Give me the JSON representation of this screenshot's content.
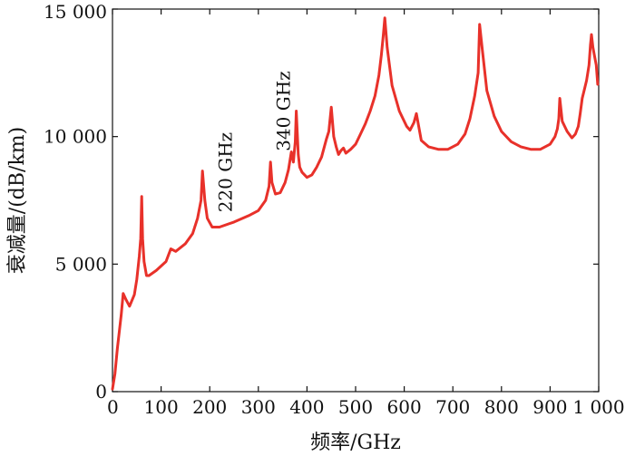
{
  "chart_data": {
    "type": "line",
    "title": "",
    "xlabel": "频率/GHz",
    "ylabel": "衰减量/(dB/km)",
    "xlim": [
      0,
      1000
    ],
    "ylim": [
      0,
      15000
    ],
    "grid": false,
    "x_ticks": [
      0,
      100,
      200,
      300,
      400,
      500,
      600,
      700,
      800,
      900,
      1000
    ],
    "x_tick_labels": [
      "0",
      "100",
      "200",
      "300",
      "400",
      "500",
      "600",
      "700",
      "800",
      "900",
      "1 000"
    ],
    "y_ticks": [
      0,
      5000,
      10000,
      15000
    ],
    "y_tick_labels": [
      "0",
      "5 000",
      "10 000",
      "15 000"
    ],
    "series": [
      {
        "color": "#e8312a",
        "x": [
          0,
          5,
          10,
          18,
          22,
          28,
          35,
          45,
          50,
          55,
          58,
          60,
          62,
          65,
          70,
          75,
          90,
          110,
          120,
          130,
          150,
          165,
          175,
          182,
          185,
          190,
          195,
          205,
          220,
          250,
          280,
          300,
          315,
          322,
          325,
          328,
          335,
          345,
          355,
          362,
          368,
          372,
          376,
          378,
          382,
          385,
          390,
          400,
          410,
          420,
          430,
          440,
          445,
          450,
          455,
          460,
          465,
          470,
          475,
          480,
          490,
          500,
          510,
          520,
          530,
          540,
          548,
          553,
          557,
          560,
          565,
          575,
          590,
          605,
          612,
          620,
          625,
          635,
          650,
          670,
          690,
          710,
          725,
          735,
          745,
          752,
          755,
          760,
          770,
          785,
          800,
          820,
          840,
          860,
          880,
          900,
          910,
          915,
          918,
          920,
          925,
          935,
          945,
          952,
          958,
          962,
          966,
          970,
          975,
          980,
          983,
          985,
          988,
          992,
          995,
          998
        ],
        "y": [
          100,
          700,
          1700,
          3000,
          3850,
          3600,
          3350,
          3800,
          4400,
          5300,
          6000,
          7650,
          6000,
          5100,
          4550,
          4550,
          4750,
          5100,
          5600,
          5500,
          5800,
          6200,
          6800,
          7500,
          8650,
          7500,
          6800,
          6450,
          6450,
          6650,
          6900,
          7100,
          7500,
          8050,
          9000,
          8200,
          7750,
          7800,
          8200,
          8700,
          9400,
          9000,
          9800,
          11000,
          9300,
          8800,
          8600,
          8400,
          8500,
          8800,
          9200,
          9900,
          10200,
          11150,
          10000,
          9600,
          9300,
          9450,
          9550,
          9350,
          9500,
          9700,
          10100,
          10500,
          11000,
          11600,
          12400,
          13200,
          14000,
          14650,
          13500,
          12000,
          11000,
          10400,
          10250,
          10550,
          10900,
          9850,
          9600,
          9500,
          9500,
          9700,
          10100,
          10700,
          11600,
          12500,
          14400,
          13500,
          11800,
          10800,
          10200,
          9800,
          9600,
          9500,
          9500,
          9700,
          10000,
          10300,
          10700,
          11500,
          10600,
          10200,
          9950,
          10100,
          10400,
          10900,
          11500,
          11800,
          12200,
          12800,
          13600,
          14000,
          13500,
          13100,
          12800,
          12050
        ]
      }
    ],
    "annotations": [
      {
        "text": "220 GHz",
        "x": 245,
        "y": 8600,
        "rotation": -90
      },
      {
        "text": "340 GHz",
        "x": 365,
        "y": 11000,
        "rotation": -90
      }
    ]
  }
}
